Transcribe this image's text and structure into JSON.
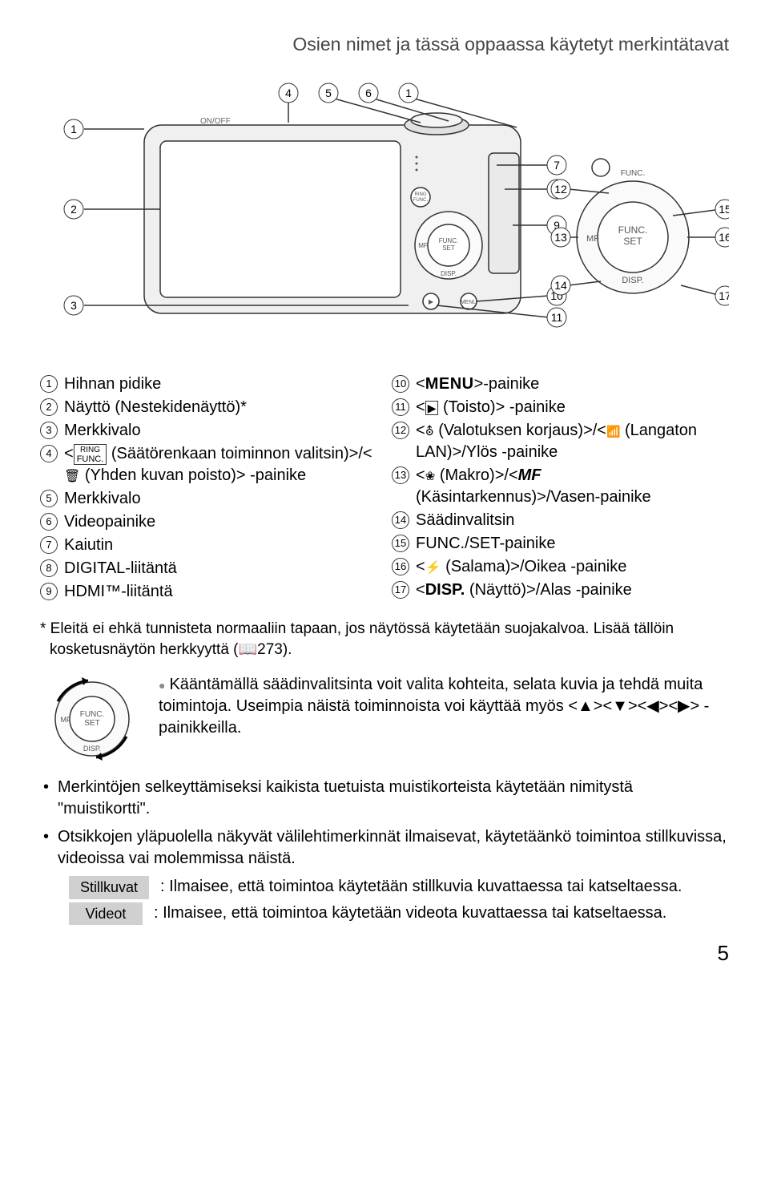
{
  "header": "Osien nimet ja tässä oppaassa käytetyt merkintätavat",
  "diagram": {
    "callouts_left": [
      1,
      2,
      3
    ],
    "callouts_top": [
      4,
      5,
      6,
      1
    ],
    "callouts_mid": [
      7,
      8,
      9,
      10,
      11
    ],
    "callouts_dial": [
      12,
      13,
      14,
      15,
      16,
      17
    ],
    "stroke": "#333333",
    "fill_body": "#e8e8e8",
    "fill_light": "#f5f5f5"
  },
  "left_items": [
    {
      "n": "1",
      "html": "Hihnan pidike"
    },
    {
      "n": "2",
      "html": "Näyttö (Nestekidenäyttö)*"
    },
    {
      "n": "3",
      "html": "Merkkivalo"
    },
    {
      "n": "4",
      "html": "&lt;<span class='icon-ring'><span class='top'>RING</span><br>FUNC.</span> (Säätörenkaan toiminnon valitsin)&gt;/&lt;<span class='icon-trash'></span> (Yhden kuvan poisto)&gt; -painike"
    },
    {
      "n": "5",
      "html": "Merkkivalo"
    },
    {
      "n": "6",
      "html": "Videopainike"
    },
    {
      "n": "7",
      "html": "Kaiutin"
    },
    {
      "n": "8",
      "html": "DIGITAL-liitäntä"
    },
    {
      "n": "9",
      "html": "HDMI™-liitäntä"
    }
  ],
  "right_items": [
    {
      "n": "10",
      "html": "&lt;<span class='icon-menu'>MENU</span>&gt;-painike"
    },
    {
      "n": "11",
      "html": "&lt;<span class='icon-play'></span> (Toisto)&gt; -painike"
    },
    {
      "n": "12",
      "html": "&lt;<span class='icon-expcomp'></span> (Valotuksen korjaus)&gt;/&lt;<span class='icon-wifi'></span> (Langaton LAN)&gt;/Ylös -painike"
    },
    {
      "n": "13",
      "html": "&lt;<span class='icon-macro'></span> (Makro)&gt;/&lt;<span class='icon-mf'>MF</span> (Käsintarkennus)&gt;/Vasen-painike"
    },
    {
      "n": "14",
      "html": "Säädinvalitsin"
    },
    {
      "n": "15",
      "html": "FUNC./SET-painike"
    },
    {
      "n": "16",
      "html": "&lt;<span class='icon-flash'></span> (Salama)&gt;/Oikea -painike"
    },
    {
      "n": "17",
      "html": "&lt;<span class='icon-disp'>DISP.</span> (Näyttö)&gt;/Alas -painike"
    }
  ],
  "footnote": "* Eleitä ei ehkä tunnisteta normaaliin tapaan, jos näytössä käytetään suojakalvoa. Lisää tällöin kosketusnäytön herkkyyttä (📖273).",
  "dial_text": "Kääntämällä säädinvalitsinta voit valita kohteita, selata kuvia ja tehdä muita toimintoja. Useimpia näistä toiminnoista voi käyttää myös <▲><▼><◀><▶> -painikkeilla.",
  "bullets": [
    "Merkintöjen selkeyttämiseksi kaikista tuetuista muistikorteista käytetään nimitystä \"muistikortti\".",
    "Otsikkojen yläpuolella näkyvät välilehtimerkinnät ilmaisevat, käytetäänkö toimintoa stillkuvissa, videoissa vai molemmissa näistä."
  ],
  "modes": [
    {
      "chip": "Stillkuvat",
      "desc": ": Ilmaisee, että toimintoa käytetään stillkuvia kuvattaessa tai katseltaessa."
    },
    {
      "chip": "Videot",
      "desc": ": Ilmaisee, että toimintoa käytetään videota kuvattaessa tai katseltaessa."
    }
  ],
  "page_number": "5"
}
